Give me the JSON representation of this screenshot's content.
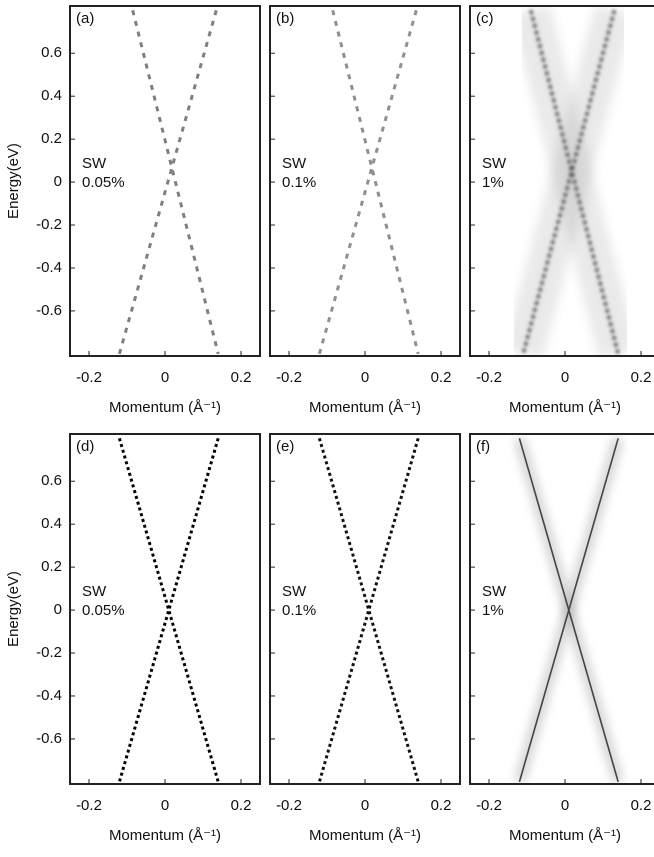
{
  "chart_data": [
    {
      "type": "line",
      "panel_label": "(a)",
      "annotation": [
        "SW",
        "0.05%"
      ],
      "xlabel": "Momentum (Å⁻¹)",
      "ylabel": "Energy(eV)",
      "style": "dashed",
      "xlim": [
        -0.25,
        0.25
      ],
      "xticks": [
        -0.2,
        0,
        0.2
      ],
      "ylim": [
        -0.81,
        0.82
      ],
      "yticks": [
        -0.6,
        -0.4,
        -0.2,
        0,
        0.2,
        0.4,
        0.6
      ],
      "series": [
        {
          "color": "#808080",
          "x": [
            -0.085,
            0.14
          ],
          "values": [
            0.8,
            -0.8
          ]
        },
        {
          "color": "#808080",
          "x": [
            0.135,
            -0.12
          ],
          "values": [
            0.8,
            -0.8
          ]
        }
      ]
    },
    {
      "type": "line",
      "panel_label": "(b)",
      "annotation": [
        "SW",
        "0.1%"
      ],
      "xlabel": "Momentum (Å⁻¹)",
      "style": "dashed",
      "xlim": [
        -0.25,
        0.25
      ],
      "xticks": [
        -0.2,
        0,
        0.2
      ],
      "ylim": [
        -0.81,
        0.82
      ],
      "yticks": [
        -0.6,
        -0.4,
        -0.2,
        0,
        0.2,
        0.4,
        0.6
      ],
      "series": [
        {
          "color": "#909090",
          "x": [
            -0.085,
            0.14
          ],
          "values": [
            0.8,
            -0.8
          ]
        },
        {
          "color": "#909090",
          "x": [
            0.135,
            -0.12
          ],
          "values": [
            0.8,
            -0.8
          ]
        }
      ]
    },
    {
      "type": "line",
      "panel_label": "(c)",
      "annotation": [
        "SW",
        "1%"
      ],
      "xlabel": "Momentum (Å⁻¹)",
      "style": "blurred",
      "xlim": [
        -0.25,
        0.25
      ],
      "xticks": [
        -0.2,
        0,
        0.2
      ],
      "ylim": [
        -0.81,
        0.82
      ],
      "yticks": [
        -0.6,
        -0.4,
        -0.2,
        0,
        0.2,
        0.4,
        0.6
      ],
      "series": [
        {
          "color": "#555555",
          "x": [
            -0.09,
            0.14
          ],
          "values": [
            0.8,
            -0.8
          ]
        },
        {
          "color": "#555555",
          "x": [
            0.13,
            -0.11
          ],
          "values": [
            0.8,
            -0.8
          ]
        }
      ]
    },
    {
      "type": "line",
      "panel_label": "(d)",
      "annotation": [
        "SW",
        "0.05%"
      ],
      "xlabel": "Momentum (Å⁻¹)",
      "ylabel": "Energy(eV)",
      "style": "dotted",
      "xlim": [
        -0.25,
        0.25
      ],
      "xticks": [
        -0.2,
        0,
        0.2
      ],
      "ylim": [
        -0.81,
        0.82
      ],
      "yticks": [
        -0.6,
        -0.4,
        -0.2,
        0,
        0.2,
        0.4,
        0.6
      ],
      "series": [
        {
          "color": "#000000",
          "x": [
            -0.12,
            0.14
          ],
          "values": [
            0.8,
            -0.8
          ]
        },
        {
          "color": "#000000",
          "x": [
            0.14,
            -0.12
          ],
          "values": [
            0.8,
            -0.8
          ]
        }
      ]
    },
    {
      "type": "line",
      "panel_label": "(e)",
      "annotation": [
        "SW",
        "0.1%"
      ],
      "xlabel": "Momentum (Å⁻¹)",
      "style": "dotted",
      "xlim": [
        -0.25,
        0.25
      ],
      "xticks": [
        -0.2,
        0,
        0.2
      ],
      "ylim": [
        -0.81,
        0.82
      ],
      "yticks": [
        -0.6,
        -0.4,
        -0.2,
        0,
        0.2,
        0.4,
        0.6
      ],
      "series": [
        {
          "color": "#111111",
          "x": [
            -0.12,
            0.14
          ],
          "values": [
            0.8,
            -0.8
          ]
        },
        {
          "color": "#111111",
          "x": [
            0.14,
            -0.12
          ],
          "values": [
            0.8,
            -0.8
          ]
        }
      ]
    },
    {
      "type": "line",
      "panel_label": "(f)",
      "annotation": [
        "SW",
        "1%"
      ],
      "xlabel": "Momentum (Å⁻¹)",
      "style": "halo",
      "xlim": [
        -0.25,
        0.25
      ],
      "xticks": [
        -0.2,
        0,
        0.2
      ],
      "ylim": [
        -0.81,
        0.82
      ],
      "yticks": [
        -0.6,
        -0.4,
        -0.2,
        0,
        0.2,
        0.4,
        0.6
      ],
      "series": [
        {
          "color": "#444444",
          "x": [
            -0.12,
            0.14
          ],
          "values": [
            0.8,
            -0.8
          ]
        },
        {
          "color": "#444444",
          "x": [
            0.14,
            -0.12
          ],
          "values": [
            0.8,
            -0.8
          ]
        }
      ]
    }
  ]
}
